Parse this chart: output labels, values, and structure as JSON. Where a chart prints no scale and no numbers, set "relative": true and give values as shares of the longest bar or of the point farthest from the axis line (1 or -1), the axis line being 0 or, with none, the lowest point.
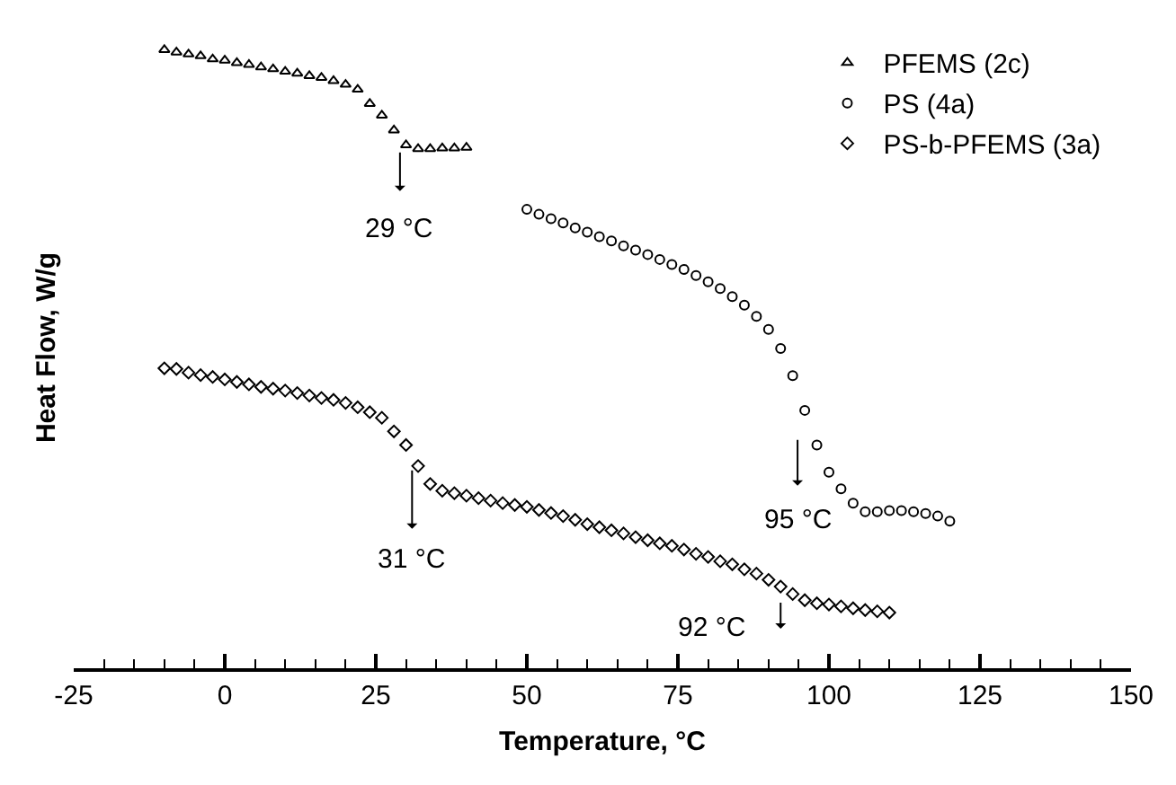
{
  "chart_data": {
    "type": "scatter",
    "relative": true,
    "xlabel": "Temperature, °C",
    "ylabel": "Heat Flow, W/g",
    "xlim": [
      -25,
      150
    ],
    "xticks": [
      -25,
      {
        "value": -20,
        "label": null
      },
      {
        "value": -15,
        "label": null
      },
      {
        "value": -10,
        "label": null
      },
      {
        "value": -5,
        "label": null
      },
      0,
      {
        "value": 5,
        "label": null
      },
      {
        "value": 10,
        "label": null
      },
      {
        "value": 15,
        "label": null
      },
      {
        "value": 20,
        "label": null
      },
      25,
      {
        "value": 30,
        "label": null
      },
      {
        "value": 35,
        "label": null
      },
      {
        "value": 40,
        "label": null
      },
      {
        "value": 45,
        "label": null
      },
      50,
      {
        "value": 55,
        "label": null
      },
      {
        "value": 60,
        "label": null
      },
      {
        "value": 65,
        "label": null
      },
      {
        "value": 70,
        "label": null
      },
      75,
      {
        "value": 80,
        "label": null
      },
      {
        "value": 85,
        "label": null
      },
      {
        "value": 90,
        "label": null
      },
      {
        "value": 95,
        "label": null
      },
      100,
      {
        "value": 105,
        "label": null
      },
      {
        "value": 110,
        "label": null
      },
      {
        "value": 115,
        "label": null
      },
      {
        "value": 120,
        "label": null
      },
      125,
      {
        "value": 130,
        "label": null
      },
      {
        "value": 135,
        "label": null
      },
      {
        "value": 140,
        "label": null
      },
      {
        "value": 145,
        "label": null
      },
      150
    ],
    "tick_labels": "x",
    "legend": "top right",
    "series": [
      {
        "name": "PFEMS (2c)",
        "color": "#000000",
        "marker": "triangle",
        "x": [
          -10,
          -8,
          -6,
          -4,
          -2,
          0,
          2,
          4,
          6,
          8,
          10,
          12,
          14,
          16,
          18,
          20,
          22,
          24,
          26,
          28,
          30,
          32,
          34,
          36,
          38,
          40
        ],
        "values": [
          1.0,
          0.996,
          0.993,
          0.99,
          0.985,
          0.983,
          0.979,
          0.976,
          0.972,
          0.969,
          0.965,
          0.962,
          0.958,
          0.955,
          0.95,
          0.944,
          0.936,
          0.913,
          0.894,
          0.87,
          0.846,
          0.84,
          0.84,
          0.841,
          0.841,
          0.842
        ]
      },
      {
        "name": "PS (4a)",
        "color": "#000000",
        "marker": "circle",
        "x": [
          50,
          52,
          54,
          56,
          58,
          60,
          62,
          64,
          66,
          68,
          70,
          72,
          74,
          76,
          78,
          80,
          82,
          84,
          86,
          88,
          90,
          92,
          94,
          96,
          98,
          100,
          102,
          104,
          106,
          108,
          110,
          112,
          114,
          116,
          118,
          120
        ],
        "values": [
          0.742,
          0.734,
          0.727,
          0.72,
          0.712,
          0.705,
          0.698,
          0.691,
          0.683,
          0.676,
          0.669,
          0.661,
          0.653,
          0.645,
          0.635,
          0.625,
          0.614,
          0.601,
          0.587,
          0.569,
          0.548,
          0.517,
          0.473,
          0.417,
          0.361,
          0.317,
          0.29,
          0.267,
          0.253,
          0.253,
          0.255,
          0.255,
          0.253,
          0.25,
          0.246,
          0.238
        ]
      },
      {
        "name": "PS-b-PFEMS (3a)",
        "color": "#000000",
        "marker": "diamond",
        "x": [
          -10,
          -8,
          -6,
          -4,
          -2,
          0,
          2,
          4,
          6,
          8,
          10,
          12,
          14,
          16,
          18,
          20,
          22,
          24,
          26,
          28,
          30,
          32,
          34,
          36,
          38,
          40,
          42,
          44,
          46,
          48,
          50,
          52,
          54,
          56,
          58,
          60,
          62,
          64,
          66,
          68,
          70,
          72,
          74,
          76,
          78,
          80,
          82,
          84,
          86,
          88,
          90,
          92,
          94,
          96,
          98,
          100,
          102,
          104,
          106,
          108,
          110
        ],
        "values": [
          0.485,
          0.484,
          0.478,
          0.474,
          0.471,
          0.467,
          0.463,
          0.459,
          0.455,
          0.452,
          0.449,
          0.445,
          0.441,
          0.437,
          0.434,
          0.429,
          0.422,
          0.414,
          0.405,
          0.383,
          0.361,
          0.327,
          0.298,
          0.287,
          0.283,
          0.279,
          0.275,
          0.271,
          0.267,
          0.264,
          0.261,
          0.256,
          0.251,
          0.246,
          0.24,
          0.233,
          0.228,
          0.223,
          0.218,
          0.212,
          0.207,
          0.202,
          0.198,
          0.192,
          0.185,
          0.18,
          0.173,
          0.168,
          0.16,
          0.153,
          0.143,
          0.132,
          0.12,
          0.11,
          0.105,
          0.103,
          0.1,
          0.097,
          0.094,
          0.092,
          0.09
        ]
      }
    ],
    "annotations": [
      {
        "text": "29 °C",
        "x": 29,
        "y": 0.834
      },
      "95 °C",
      {
        "text": "31 °C",
        "x": 31,
        "y": 0.32
      },
      {
        "text": "92 °C",
        "x": 92,
        "y": 0.132
      }
    ]
  }
}
